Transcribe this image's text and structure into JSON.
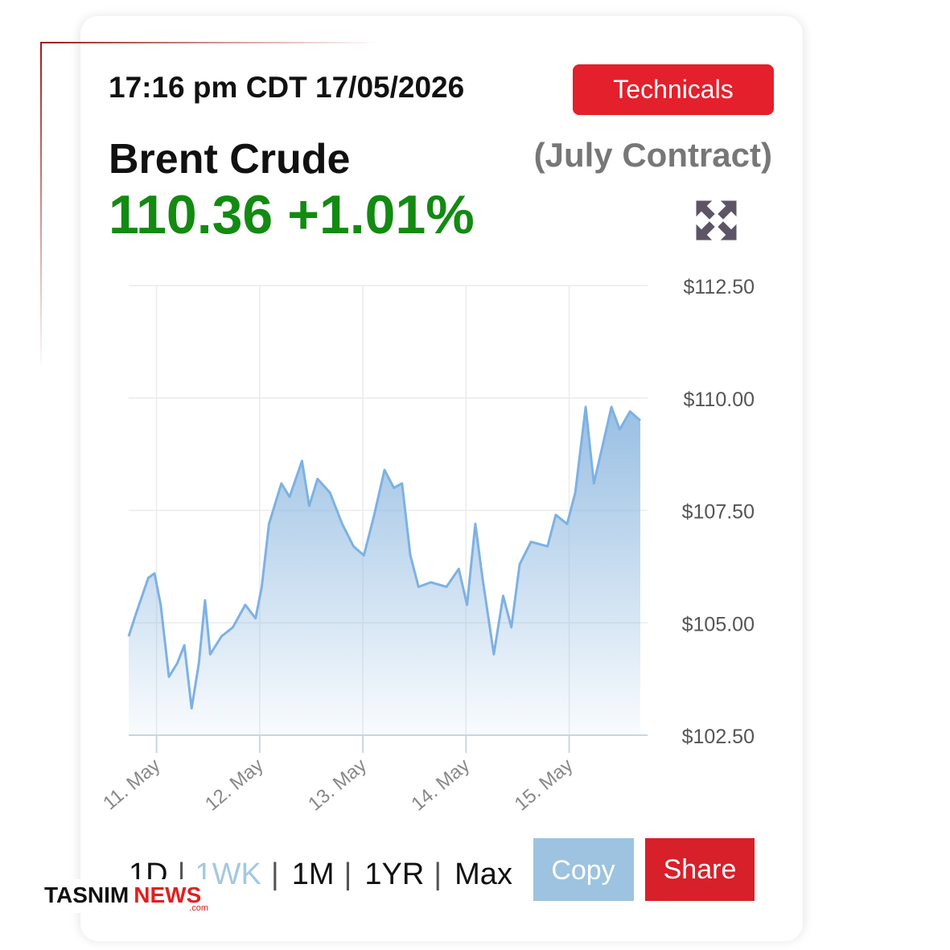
{
  "header": {
    "timestamp": "17:16 pm CDT 17/05/2026",
    "technicals_button": "Technicals",
    "commodity": "Brent Crude",
    "contract": "(July Contract)",
    "price": "110.36",
    "change": "+1.01%"
  },
  "chart_data": {
    "type": "line",
    "color": "#7eb1e2",
    "area": true,
    "grid": true,
    "x": [
      10.73,
      10.8,
      10.92,
      10.98,
      11.04,
      11.12,
      11.2,
      11.27,
      11.34,
      11.41,
      11.47,
      11.52,
      11.63,
      11.74,
      11.86,
      11.96,
      12.02,
      12.09,
      12.21,
      12.29,
      12.41,
      12.48,
      12.56,
      12.68,
      12.8,
      12.91,
      13.01,
      13.11,
      13.21,
      13.3,
      13.38,
      13.46,
      13.54,
      13.66,
      13.81,
      13.93,
      14.01,
      14.09,
      14.16,
      14.27,
      14.36,
      14.44,
      14.52,
      14.63,
      14.79,
      14.87,
      14.98,
      15.06,
      15.16,
      15.24,
      15.32,
      15.41,
      15.49,
      15.59,
      15.69
    ],
    "values": [
      104.7,
      105.2,
      106.0,
      106.1,
      105.4,
      103.8,
      104.1,
      104.5,
      103.1,
      104.1,
      105.5,
      104.3,
      104.7,
      104.9,
      105.4,
      105.1,
      105.8,
      107.2,
      108.1,
      107.8,
      108.6,
      107.6,
      108.2,
      107.9,
      107.2,
      106.7,
      106.5,
      107.4,
      108.4,
      108.0,
      108.1,
      106.5,
      105.8,
      105.9,
      105.8,
      106.2,
      105.4,
      107.2,
      106.0,
      104.3,
      105.6,
      104.9,
      106.3,
      106.8,
      106.7,
      107.4,
      107.2,
      107.9,
      109.8,
      108.1,
      108.9,
      109.8,
      109.3,
      109.7,
      109.5
    ],
    "xlim": [
      10.73,
      15.76
    ],
    "xticks": [
      {
        "value": 11,
        "label": "11. May"
      },
      {
        "value": 12,
        "label": "12. May"
      },
      {
        "value": 13,
        "label": "13. May"
      },
      {
        "value": 14,
        "label": "14. May"
      },
      {
        "value": 15,
        "label": "15. May"
      }
    ],
    "ylim": [
      102.5,
      112.5
    ],
    "yticks": [
      {
        "value": 102.5,
        "label": "$102.50"
      },
      {
        "value": 105,
        "label": "$105.00"
      },
      {
        "value": 107.5,
        "label": "$107.50"
      },
      {
        "value": 110,
        "label": "$110.00"
      },
      {
        "value": 112.5,
        "label": "$112.50"
      }
    ]
  },
  "footer": {
    "ranges": [
      "1D",
      "1WK",
      "1M",
      "1YR",
      "Max"
    ],
    "separator": "|",
    "copy_button": "Copy",
    "share_button": "Share"
  },
  "logo": {
    "name": "TASNIM",
    "news": "NEWS",
    "domain": ".com"
  }
}
